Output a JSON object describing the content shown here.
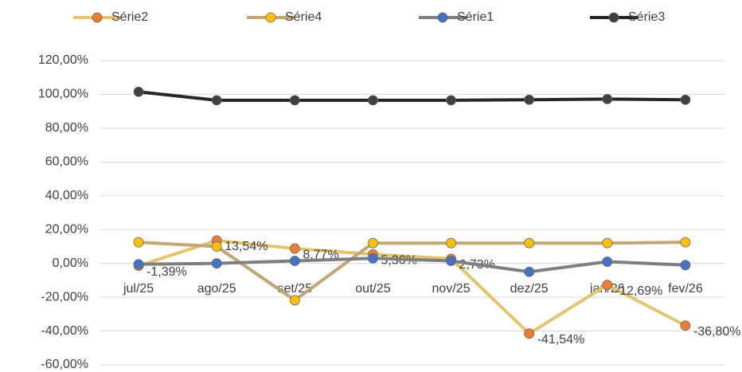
{
  "chart_data": {
    "type": "line",
    "categories": [
      "jul/25",
      "ago/25",
      "set/25",
      "out/25",
      "nov/25",
      "dez/25",
      "jan/26",
      "fev/26"
    ],
    "series": [
      {
        "name": "Série2",
        "color": "#e3c56b",
        "marker_color": "#ed7d31",
        "values": [
          -1.39,
          13.54,
          8.77,
          5.36,
          2.73,
          -41.54,
          -12.69,
          -36.8
        ],
        "value_labels": [
          "-1,39%",
          "13,54%",
          "8,77%",
          "5,36%",
          "2,73%",
          "-41,54%",
          "-12,69%",
          "-36,80%"
        ]
      },
      {
        "name": "Série4",
        "color": "#c2a673",
        "marker_color": "#ffc000",
        "values": [
          12.5,
          10,
          -21.8,
          12,
          12,
          12,
          12,
          12.5
        ]
      },
      {
        "name": "Série1",
        "color": "#7f7f7f",
        "marker_color": "#4472c4",
        "values": [
          -0.5,
          0,
          1.5,
          3,
          1.5,
          -5,
          1,
          -1
        ]
      },
      {
        "name": "Série3",
        "color": "#262626",
        "marker_color": "#404040",
        "values": [
          101.5,
          96.5,
          96.5,
          96.5,
          96.5,
          96.8,
          97.2,
          96.8
        ]
      }
    ],
    "ylim": [
      -60,
      120
    ],
    "yticks": [
      {
        "value": -60,
        "label": "-60,00%"
      },
      {
        "value": -40,
        "label": "-40,00%"
      },
      {
        "value": -20,
        "label": "-20,00%"
      },
      {
        "value": 0,
        "label": "0,00%"
      },
      {
        "value": 20,
        "label": "20,00%"
      },
      {
        "value": 40,
        "label": "40,00%"
      },
      {
        "value": 60,
        "label": "60,00%"
      },
      {
        "value": 80,
        "label": "80,00%"
      },
      {
        "value": 100,
        "label": "100,00%"
      },
      {
        "value": 120,
        "label": "120,00%"
      }
    ],
    "grid": true,
    "legend": "top"
  }
}
